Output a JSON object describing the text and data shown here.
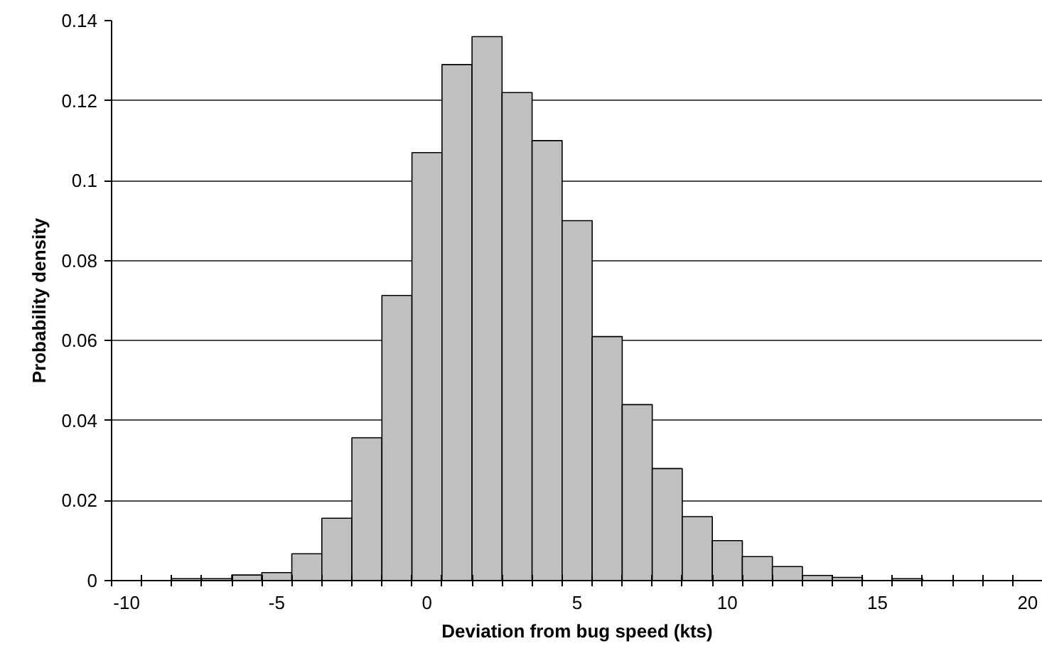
{
  "chart_data": {
    "type": "bar",
    "xlabel": "Deviation from bug speed (kts)",
    "ylabel": "Probability density",
    "categories": [
      "-10",
      null,
      null,
      null,
      null,
      "-5",
      null,
      null,
      null,
      null,
      "0",
      null,
      null,
      null,
      null,
      "5",
      null,
      null,
      null,
      null,
      "10",
      null,
      null,
      null,
      null,
      "15",
      null,
      null,
      null,
      null,
      "20"
    ],
    "values": [
      0,
      0,
      0.0005,
      0.0005,
      0.0014,
      0.002,
      0.0067,
      0.0156,
      0.0357,
      0.0713,
      0.107,
      0.129,
      0.136,
      0.122,
      0.11,
      0.09,
      0.061,
      0.044,
      0.028,
      0.016,
      0.01,
      0.006,
      0.0035,
      0.0013,
      0.0008,
      0,
      0.0005,
      0,
      0,
      0,
      0
    ],
    "color": "#c0c0c0",
    "ylim": [
      0,
      0.14
    ],
    "yticks": [
      0,
      0.02,
      0.04,
      0.06,
      0.08,
      0.1,
      0.12,
      0.14
    ],
    "grid": "y"
  }
}
